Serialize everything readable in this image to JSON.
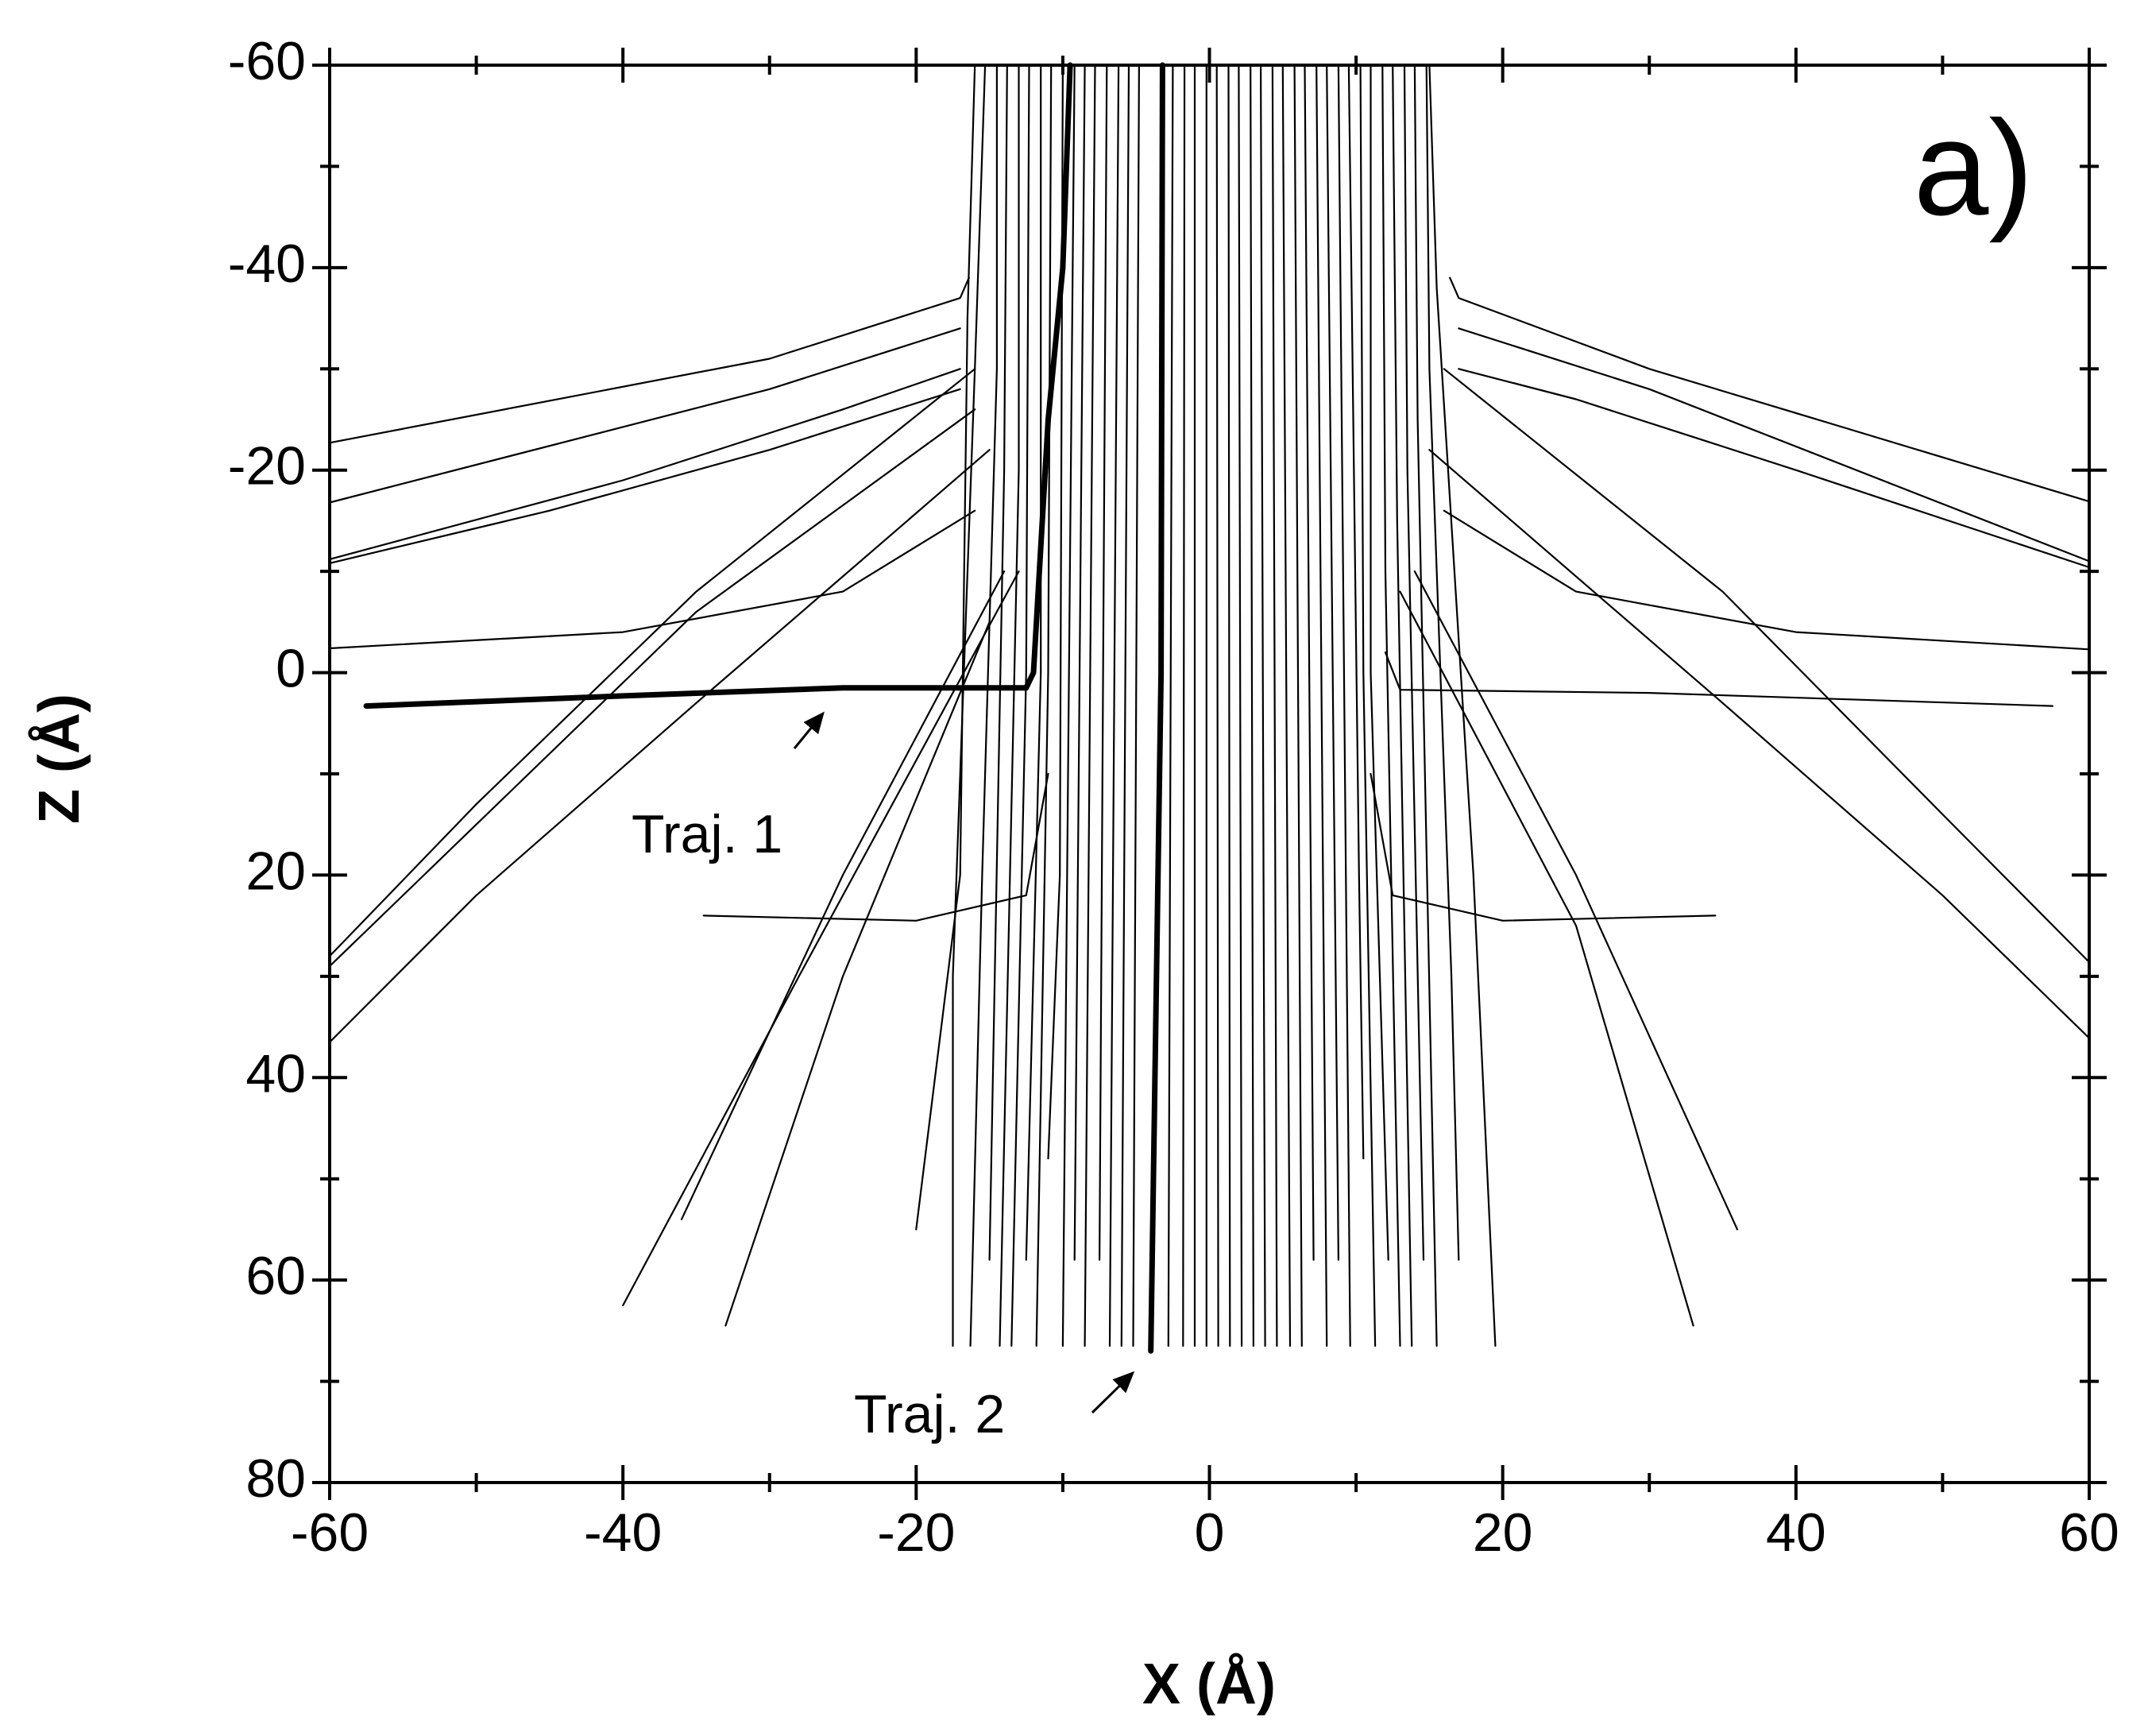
{
  "chart_data": {
    "type": "line",
    "x_label": "X (Å)",
    "y_label": "Z (Å)",
    "panel_label": "a)",
    "xlim": [
      -60,
      60
    ],
    "xticks": [
      -60,
      -40,
      -20,
      0,
      20,
      40,
      60
    ],
    "xminorticks": [
      -50,
      -30,
      -10,
      10,
      30,
      50
    ],
    "ylim": [
      -60,
      80
    ],
    "yticks": [
      -60,
      -40,
      -20,
      0,
      20,
      40,
      60,
      80
    ],
    "yminorticks": [
      -50,
      -30,
      -10,
      10,
      30,
      50,
      70
    ],
    "y_reversed": true,
    "color": "#000000",
    "line_width": 2.2,
    "series": [
      {
        "name": "Traj. 1",
        "width": 7,
        "x": [
          -9.5,
          -10,
          -11,
          -12,
          -12.5,
          -25,
          -40,
          -57.5
        ],
        "values": [
          -60,
          -40,
          -25,
          0,
          1.5,
          1.5,
          2.3,
          3.3
        ]
      },
      {
        "name": "Traj. 2",
        "width": 7,
        "x": [
          -3.2,
          -3.3,
          -4
        ],
        "values": [
          -60,
          0,
          67
        ]
      },
      {
        "x": [
          -16,
          -16.5,
          -17,
          -20
        ],
        "values": [
          -60,
          -35,
          20,
          55
        ]
      },
      {
        "x": [
          -15.3,
          -16,
          -17.5,
          -17.5
        ],
        "values": [
          -60,
          -30,
          30,
          66.5
        ]
      },
      {
        "x": [
          -14.5,
          -14.5,
          -15.5,
          -16.3
        ],
        "values": [
          -60,
          -30,
          20,
          66.5
        ]
      },
      {
        "x": [
          -13.8,
          -14,
          -15
        ],
        "values": [
          -60,
          -20,
          58
        ]
      },
      {
        "x": [
          -13,
          -13,
          -14.3
        ],
        "values": [
          -60,
          -20,
          66.5
        ]
      },
      {
        "x": [
          -12.3,
          -12.5,
          -13.5
        ],
        "values": [
          -60,
          0,
          66.5
        ]
      },
      {
        "x": [
          -11.5,
          -11.5,
          -12.5
        ],
        "values": [
          -60,
          0,
          58
        ]
      },
      {
        "x": [
          -10.8,
          -11,
          -11.8
        ],
        "values": [
          -60,
          0,
          66.5
        ]
      },
      {
        "x": [
          -10,
          -10.2,
          -11
        ],
        "values": [
          -60,
          20,
          48
        ]
      },
      {
        "x": [
          -9.2,
          -10
        ],
        "values": [
          -60,
          66.5
        ]
      },
      {
        "x": [
          -8.5,
          -9.2
        ],
        "values": [
          -60,
          58
        ]
      },
      {
        "x": [
          -7.8,
          -8.5
        ],
        "values": [
          -60,
          66.5
        ]
      },
      {
        "x": [
          -7,
          -7.5
        ],
        "values": [
          -60,
          58
        ]
      },
      {
        "x": [
          -6.2,
          -6.8
        ],
        "values": [
          -60,
          66.5
        ]
      },
      {
        "x": [
          -5.5,
          -6
        ],
        "values": [
          -60,
          66.5
        ]
      },
      {
        "x": [
          -4.8,
          -5.2
        ],
        "values": [
          -60,
          66.5
        ]
      },
      {
        "x": [
          -2.5,
          -2.8
        ],
        "values": [
          -60,
          66.5
        ]
      },
      {
        "x": [
          -1.7,
          -1.8
        ],
        "values": [
          -60,
          66.5
        ]
      },
      {
        "x": [
          -1,
          -1
        ],
        "values": [
          -60,
          66.5
        ]
      },
      {
        "x": [
          -0.2,
          -0.2
        ],
        "values": [
          -60,
          66.5
        ]
      },
      {
        "x": [
          0.5,
          0.6
        ],
        "values": [
          -60,
          66.5
        ]
      },
      {
        "x": [
          1.3,
          1.4
        ],
        "values": [
          -60,
          66.5
        ]
      },
      {
        "x": [
          2,
          2.2
        ],
        "values": [
          -60,
          66.5
        ]
      },
      {
        "x": [
          2.8,
          3
        ],
        "values": [
          -60,
          66.5
        ]
      },
      {
        "x": [
          3.5,
          3.8
        ],
        "values": [
          -60,
          66.5
        ]
      },
      {
        "x": [
          4.3,
          4.6
        ],
        "values": [
          -60,
          66.5
        ]
      },
      {
        "x": [
          5,
          5.5
        ],
        "values": [
          -60,
          66.5
        ]
      },
      {
        "x": [
          5.8,
          6.3
        ],
        "values": [
          -60,
          66.5
        ]
      },
      {
        "x": [
          6.5,
          7.1
        ],
        "values": [
          -60,
          58
        ]
      },
      {
        "x": [
          7.3,
          8
        ],
        "values": [
          -60,
          66.5
        ]
      },
      {
        "x": [
          8,
          8.8
        ],
        "values": [
          -60,
          58
        ]
      },
      {
        "x": [
          8.8,
          9.6
        ],
        "values": [
          -60,
          66.5
        ]
      },
      {
        "x": [
          9.5,
          10.2,
          10.5
        ],
        "values": [
          -60,
          20,
          48
        ]
      },
      {
        "x": [
          10.3,
          10.5,
          11.3
        ],
        "values": [
          -60,
          0,
          66.5
        ]
      },
      {
        "x": [
          11,
          11,
          12.2
        ],
        "values": [
          -60,
          0,
          58
        ]
      },
      {
        "x": [
          11.8,
          12,
          13
        ],
        "values": [
          -60,
          -10,
          66.5
        ]
      },
      {
        "x": [
          12.5,
          12.8,
          13.8
        ],
        "values": [
          -60,
          -15,
          66.5
        ]
      },
      {
        "x": [
          13.3,
          13.5,
          14.6
        ],
        "values": [
          -60,
          -20,
          58
        ]
      },
      {
        "x": [
          14,
          14.2,
          15.5
        ],
        "values": [
          -60,
          -25,
          66.5
        ]
      },
      {
        "x": [
          14.8,
          15,
          16.5,
          17
        ],
        "values": [
          -60,
          -30,
          30,
          58
        ]
      },
      {
        "x": [
          15,
          15.5,
          18,
          19.5
        ],
        "values": [
          -60,
          -38,
          20,
          66.5
        ]
      },
      {
        "x": [
          -16.4,
          -17,
          -30,
          -60
        ],
        "values": [
          -39,
          -37,
          -31,
          -22.7
        ]
      },
      {
        "x": [
          -17,
          -30,
          -60
        ],
        "values": [
          -34,
          -28,
          -16.8
        ]
      },
      {
        "x": [
          -17,
          -25,
          -40,
          -60
        ],
        "values": [
          -30,
          -26,
          -19,
          -11.2
        ]
      },
      {
        "x": [
          -17,
          -30,
          -45,
          -60
        ],
        "values": [
          -28,
          -22,
          -16,
          -10.8
        ]
      },
      {
        "x": [
          -16,
          -25,
          -40,
          -60
        ],
        "values": [
          -16,
          -8,
          -4,
          -2.4
        ]
      },
      {
        "x": [
          -16,
          -35,
          -50,
          -60
        ],
        "values": [
          -30,
          -8,
          13,
          28
        ]
      },
      {
        "x": [
          -16,
          -35,
          -50,
          -60
        ],
        "values": [
          -26,
          -6,
          15,
          29
        ]
      },
      {
        "x": [
          -15,
          -35,
          -50,
          -60
        ],
        "values": [
          -22,
          3,
          22,
          36.5
        ]
      },
      {
        "x": [
          -14,
          -25,
          -36
        ],
        "values": [
          -10,
          20,
          54
        ]
      },
      {
        "x": [
          -13,
          -28,
          -40
        ],
        "values": [
          -10,
          30,
          62.5
        ]
      },
      {
        "x": [
          -15,
          -25,
          -33
        ],
        "values": [
          -5,
          30,
          64.5
        ]
      },
      {
        "x": [
          -11,
          -12.5,
          -20,
          -34.5
        ],
        "values": [
          10,
          22,
          24.5,
          24
        ]
      },
      {
        "x": [
          16.4,
          17,
          30,
          60
        ],
        "values": [
          -39,
          -37,
          -30,
          -16.9
        ]
      },
      {
        "x": [
          17,
          30,
          60
        ],
        "values": [
          -34,
          -28,
          -11
        ]
      },
      {
        "x": [
          17,
          25,
          40,
          60
        ],
        "values": [
          -30,
          -27,
          -20,
          -10.4
        ]
      },
      {
        "x": [
          16,
          25,
          40,
          60
        ],
        "values": [
          -16,
          -8,
          -4,
          -2.3
        ]
      },
      {
        "x": [
          12,
          13,
          30,
          57.5
        ],
        "values": [
          -2,
          1.7,
          2,
          3.3
        ]
      },
      {
        "x": [
          16,
          35,
          50,
          60
        ],
        "values": [
          -30,
          -8,
          14,
          28.6
        ]
      },
      {
        "x": [
          15,
          35,
          50,
          60
        ],
        "values": [
          -22,
          3,
          22,
          36.1
        ]
      },
      {
        "x": [
          14,
          25,
          36
        ],
        "values": [
          -10,
          20,
          55
        ]
      },
      {
        "x": [
          13,
          25,
          33
        ],
        "values": [
          -8,
          25,
          64.5
        ]
      },
      {
        "x": [
          11,
          12.5,
          20,
          34.5
        ],
        "values": [
          10,
          22,
          24.5,
          24
        ]
      }
    ]
  }
}
